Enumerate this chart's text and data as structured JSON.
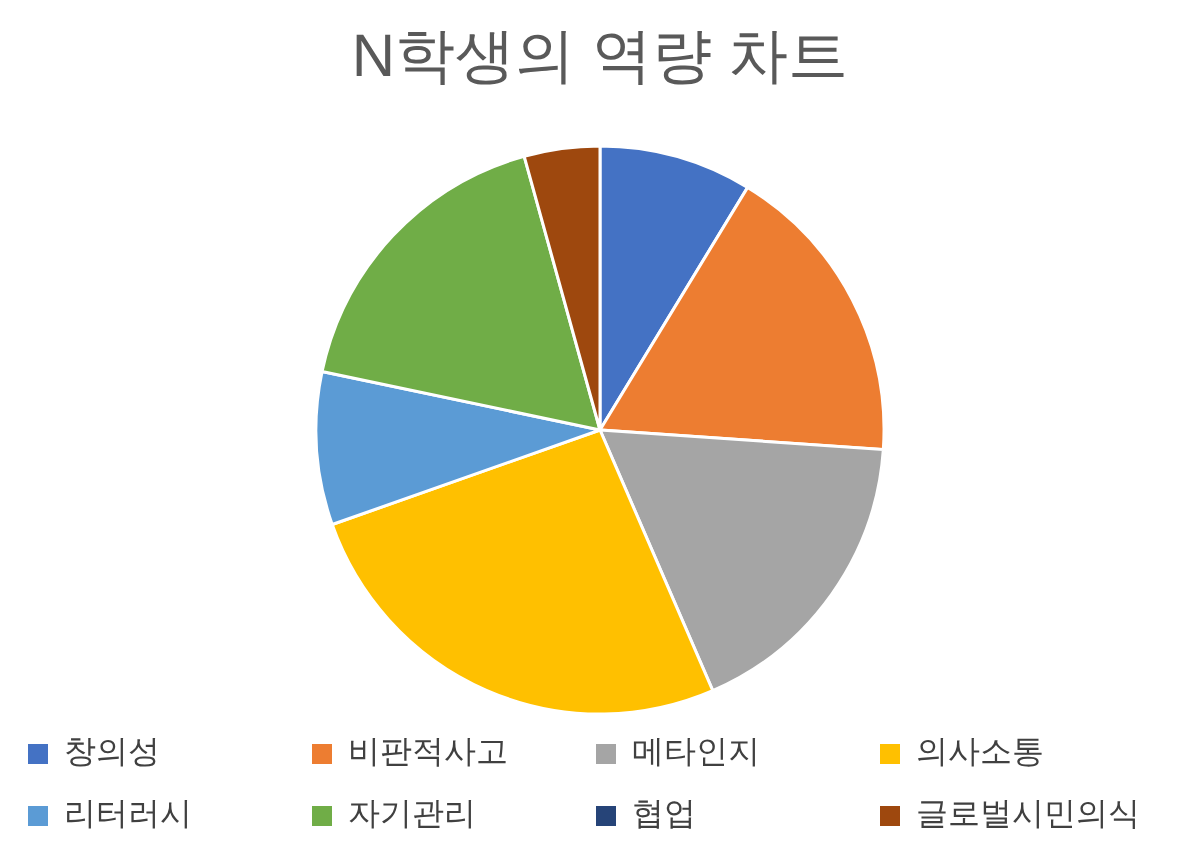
{
  "chart_data": {
    "type": "pie",
    "title": "N학생의 역량 차트",
    "categories": [
      "창의성",
      "비판적사고",
      "메타인지",
      "의사소통",
      "리터러시",
      "자기관리",
      "협업",
      "글로벌시민의식"
    ],
    "values": [
      8.7,
      17.4,
      17.4,
      26.1,
      8.7,
      17.4,
      0,
      4.3
    ],
    "colors": [
      "#4472c4",
      "#ed7d31",
      "#a5a5a5",
      "#ffc000",
      "#5b9bd5",
      "#70ad47",
      "#264478",
      "#9e480e"
    ],
    "legend": "bottom"
  }
}
